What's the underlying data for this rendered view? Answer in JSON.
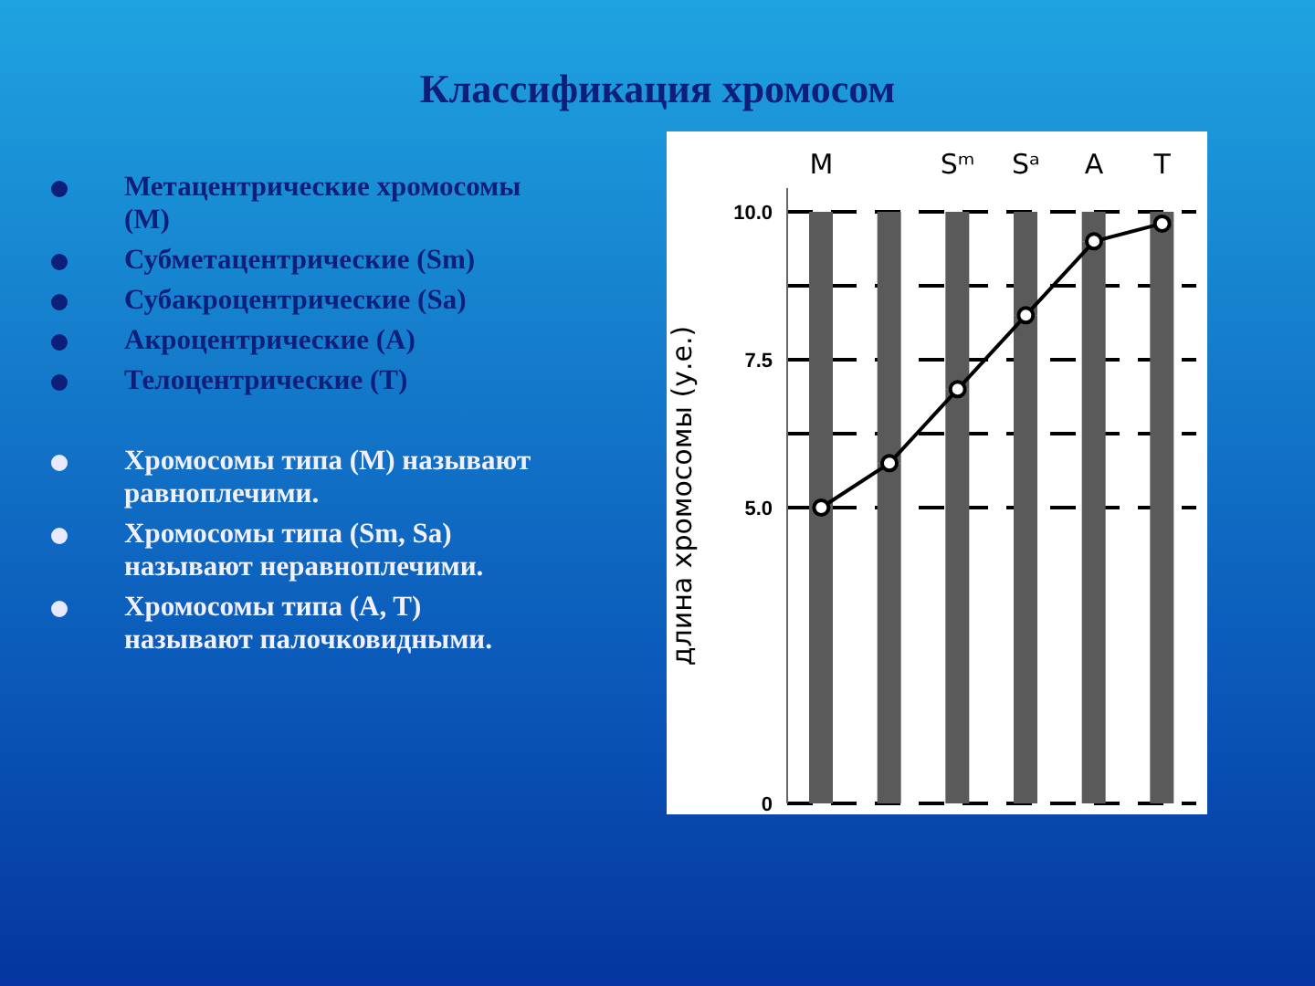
{
  "chart_data": {
    "type": "bar",
    "title": "Классификация хромосом",
    "annotations": [
      "Метацентрические хромосомы (M)",
      "Субметацентрические (Sm)",
      "Субакроцентрические (Sa)",
      "Акроцентрические (A)",
      "Телоцентрические (T)",
      "Хромосомы типа (M) называют равноплечими.",
      "Хромосомы типа (Sm, Sa) называют неравноплечими.",
      "Хромосомы типа (A, T) называют палочковидными."
    ],
    "ylabel": "длина хромосомы (у.е.)",
    "categories": [
      "M",
      null,
      "Sᵐ",
      "Sᵃ",
      "A",
      "T"
    ],
    "stacked": true,
    "series": [
      {
        "type": "bar",
        "color": "#5a5a5a",
        "values": [
          5.0,
          5.75,
          7.0,
          8.25,
          9.5,
          9.8
        ]
      },
      {
        "type": "bar",
        "color": "#5a5a5a",
        "values": [
          5.0,
          4.25,
          3.0,
          1.75,
          0.5,
          0.2
        ]
      },
      {
        "type": "line",
        "color": "#000000",
        "values": [
          5.0,
          5.75,
          7.0,
          8.25,
          9.5,
          9.8
        ],
        "marker": "circle",
        "line_style": "solid"
      }
    ],
    "ylim": [
      0,
      10.4
    ],
    "yticks": [
      {
        "value": 0,
        "label": "0"
      },
      {
        "value": 5,
        "label": "5.0"
      },
      {
        "value": 6.25,
        "label": null
      },
      {
        "value": 7.5,
        "label": "7.5"
      },
      {
        "value": 8.75,
        "label": null
      },
      {
        "value": 10,
        "label": "10.0"
      }
    ],
    "grid": "y"
  }
}
